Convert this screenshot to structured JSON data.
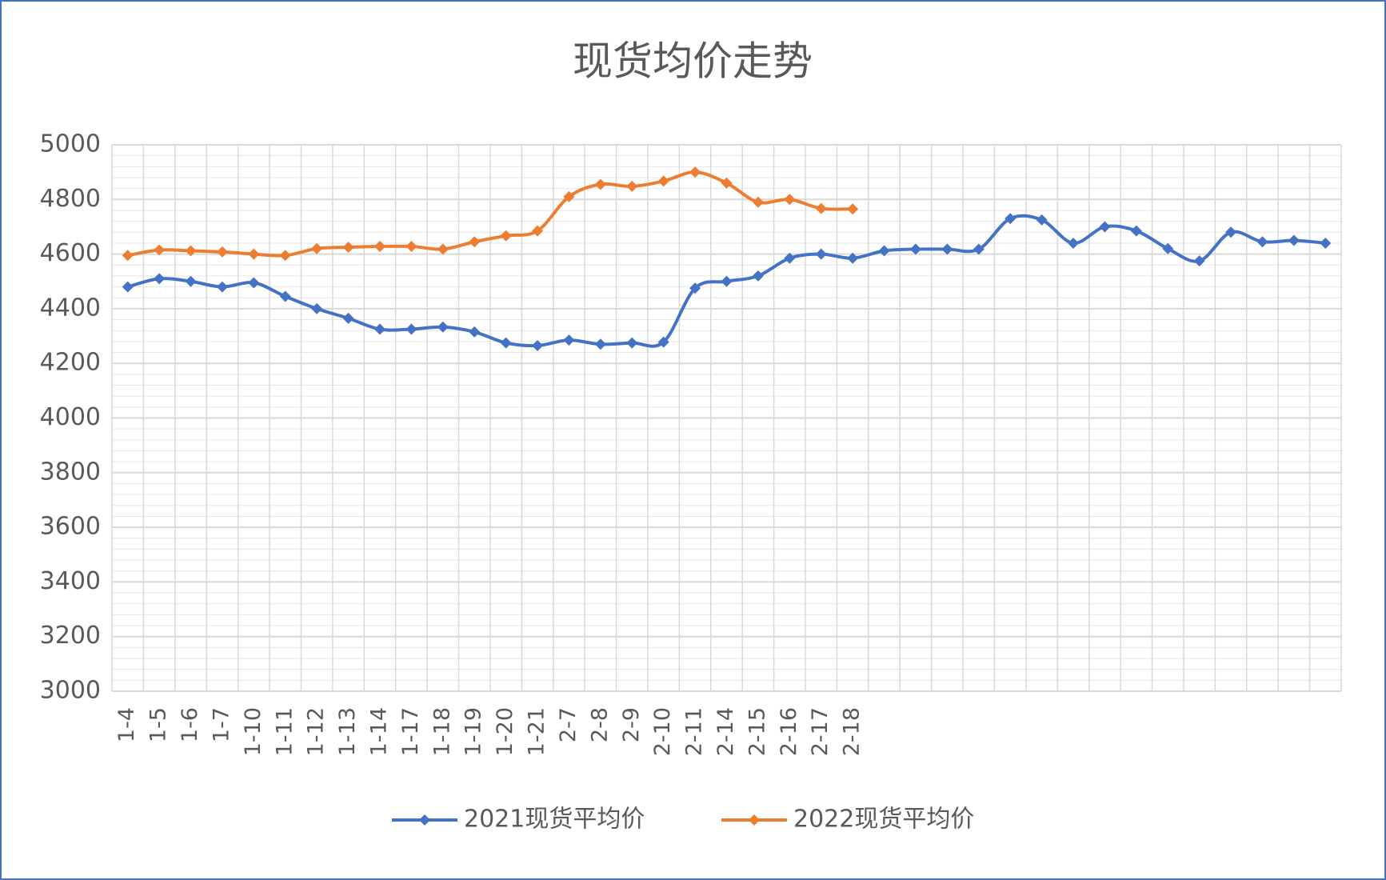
{
  "chart_data": {
    "type": "line",
    "title": "现货均价走势",
    "categories": [
      "1-4",
      "1-5",
      "1-6",
      "1-7",
      "1-10",
      "1-11",
      "1-12",
      "1-13",
      "1-14",
      "1-17",
      "1-18",
      "1-19",
      "1-20",
      "1-21",
      "2-7",
      "2-8",
      "2-9",
      "2-10",
      "2-11",
      "2-14",
      "2-15",
      "2-16",
      "2-17",
      "2-18",
      null,
      null,
      null,
      null,
      null,
      null,
      null,
      null,
      null,
      null,
      null,
      null,
      null,
      null,
      null
    ],
    "series": [
      {
        "name": "2021现货平均价",
        "color": "#4472c4",
        "values": [
          4480,
          4510,
          4500,
          4480,
          4495,
          4445,
          4400,
          4365,
          4325,
          4325,
          4333,
          4315,
          4275,
          4265,
          4285,
          4270,
          4275,
          4278,
          4475,
          4500,
          4520,
          4585,
          4600,
          4585,
          4612,
          4618,
          4618,
          4618,
          4730,
          4725,
          4640,
          4700,
          4685,
          4620,
          4575,
          4680,
          4645,
          4650,
          4640
        ]
      },
      {
        "name": "2022现货平均价",
        "color": "#ed7d31",
        "values": [
          4595,
          4615,
          4612,
          4608,
          4600,
          4595,
          4620,
          4625,
          4628,
          4628,
          4618,
          4645,
          4667,
          4685,
          4810,
          4855,
          4848,
          4867,
          4900,
          4860,
          4790,
          4800,
          4767,
          4765,
          null,
          null,
          null,
          null,
          null,
          null,
          null,
          null,
          null,
          null,
          null,
          null,
          null,
          null,
          null
        ]
      }
    ],
    "ylim": [
      3000,
      5000
    ],
    "yticks": [
      3000,
      3200,
      3400,
      3600,
      3800,
      4000,
      4200,
      4400,
      4600,
      4800,
      5000
    ],
    "grid": true,
    "legend": "bottom"
  }
}
